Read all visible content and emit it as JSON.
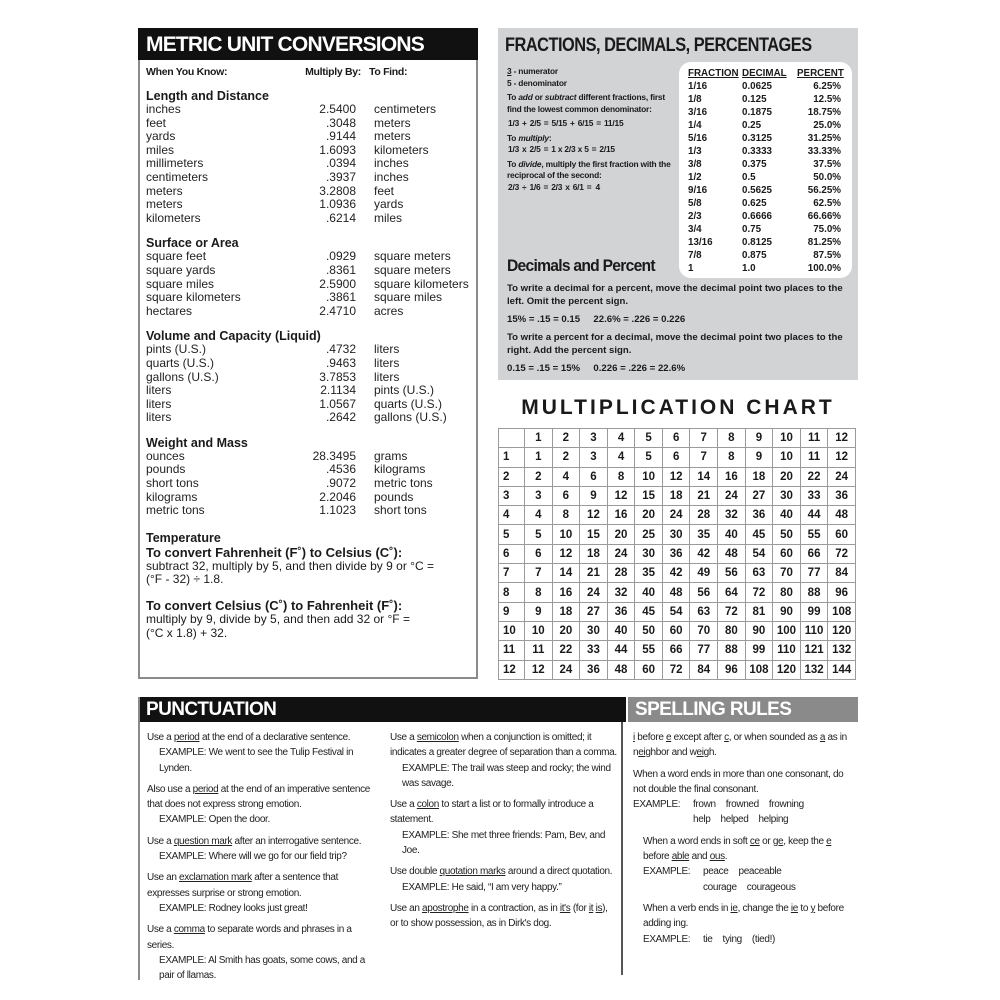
{
  "metric": {
    "title": "METRIC UNIT CONVERSIONS",
    "columns": [
      "When You Know:",
      "Multiply By:",
      "To Find:"
    ],
    "sections": [
      {
        "name": "Length and Distance",
        "rows": [
          [
            "inches",
            "2.5400",
            "centimeters"
          ],
          [
            "feet",
            ".3048",
            "meters"
          ],
          [
            "yards",
            ".9144",
            "meters"
          ],
          [
            "miles",
            "1.6093",
            "kilometers"
          ],
          [
            "millimeters",
            ".0394",
            "inches"
          ],
          [
            "centimeters",
            ".3937",
            "inches"
          ],
          [
            "meters",
            "3.2808",
            "feet"
          ],
          [
            "meters",
            "1.0936",
            "yards"
          ],
          [
            "kilometers",
            ".6214",
            "miles"
          ]
        ]
      },
      {
        "name": "Surface or Area",
        "rows": [
          [
            "square feet",
            ".0929",
            "square meters"
          ],
          [
            "square yards",
            ".8361",
            "square meters"
          ],
          [
            "square miles",
            "2.5900",
            "square kilometers"
          ],
          [
            "square kilometers",
            ".3861",
            "square miles"
          ],
          [
            "hectares",
            "2.4710",
            "acres"
          ]
        ]
      },
      {
        "name": "Volume and Capacity (Liquid)",
        "rows": [
          [
            "pints (U.S.)",
            ".4732",
            "liters"
          ],
          [
            "quarts (U.S.)",
            ".9463",
            "liters"
          ],
          [
            "gallons (U.S.)",
            "3.7853",
            "liters"
          ],
          [
            "liters",
            "2.1134",
            "pints (U.S.)"
          ],
          [
            "liters",
            "1.0567",
            "quarts (U.S.)"
          ],
          [
            "liters",
            ".2642",
            "gallons (U.S.)"
          ]
        ]
      },
      {
        "name": "Weight and Mass",
        "rows": [
          [
            "ounces",
            "28.3495",
            "grams"
          ],
          [
            "pounds",
            ".4536",
            "kilograms"
          ],
          [
            "short tons",
            ".9072",
            "metric tons"
          ],
          [
            "kilograms",
            "2.2046",
            "pounds"
          ],
          [
            "metric tons",
            "1.1023",
            "short tons"
          ]
        ]
      }
    ],
    "temperature": {
      "heading": "Temperature",
      "f_to_c_title": "To convert Fahrenheit (F˚) to Celsius (C˚):",
      "f_to_c_text": "subtract 32, multiply by 5, and then divide by 9 or °C = (°F - 32) ÷ 1.8.",
      "c_to_f_title": "To convert Celsius (C˚) to Fahrenheit (F˚):",
      "c_to_f_text": "multiply by 9, divide by 5, and then add 32 or °F = (°C x 1.8) + 32."
    }
  },
  "fractions": {
    "title": "FRACTIONS, DECIMALS, PERCENTAGES",
    "numerator": {
      "digit": "3",
      "label": " - numerator"
    },
    "denominator": {
      "digit": "5",
      "label": " - denominator"
    },
    "add_text": [
      "To ",
      "add",
      " or ",
      "subtract",
      " different fractions, first find the lowest common denominator:"
    ],
    "add_formula": [
      "1/3",
      "+",
      "2/5",
      "=",
      "5/15",
      "+",
      "6/15",
      "=",
      "11/15"
    ],
    "multiply_text": [
      "To ",
      "multiply",
      ":"
    ],
    "multiply_formula": [
      "1/3",
      "x",
      "2/5",
      "=",
      "1 x 2/3 x 5",
      "=",
      "2/15"
    ],
    "divide_text": [
      "To ",
      "divide",
      ", multiply the first fraction with the reciprocal of the second:"
    ],
    "divide_formula": [
      "2/3",
      "÷",
      "1/6",
      "=",
      "2/3",
      "x",
      "6/1",
      "=",
      "4"
    ],
    "table": {
      "headers": [
        "FRACTION",
        "DECIMAL",
        "PERCENT"
      ],
      "rows": [
        [
          "1/16",
          "0.0625",
          "6.25%"
        ],
        [
          "1/8",
          "0.125",
          "12.5%"
        ],
        [
          "3/16",
          "0.1875",
          "18.75%"
        ],
        [
          "1/4",
          "0.25",
          "25.0%"
        ],
        [
          "5/16",
          "0.3125",
          "31.25%"
        ],
        [
          "1/3",
          "0.3333",
          "33.33%"
        ],
        [
          "3/8",
          "0.375",
          "37.5%"
        ],
        [
          "1/2",
          "0.5",
          "50.0%"
        ],
        [
          "9/16",
          "0.5625",
          "56.25%"
        ],
        [
          "5/8",
          "0.625",
          "62.5%"
        ],
        [
          "2/3",
          "0.6666",
          "66.66%"
        ],
        [
          "3/4",
          "0.75",
          "75.0%"
        ],
        [
          "13/16",
          "0.8125",
          "81.25%"
        ],
        [
          "7/8",
          "0.875",
          "87.5%"
        ],
        [
          "1",
          "1.0",
          "100.0%"
        ]
      ]
    },
    "decimals": {
      "heading": "Decimals and Percent",
      "p1": "To write a decimal for a percent, move the decimal point two places to the left. Omit the percent sign.",
      "ex1": "15% = .15 = 0.15     22.6% = .226 = 0.226",
      "p2": "To write a percent for a decimal, move the decimal point two places to the right. Add the percent sign.",
      "ex2": "0.15 = .15 = 15%     0.226 = .226 = 22.6%"
    }
  },
  "multiplication": {
    "title": "MULTIPLICATION CHART",
    "headers": [
      "1",
      "2",
      "3",
      "4",
      "5",
      "6",
      "7",
      "8",
      "9",
      "10",
      "11",
      "12"
    ],
    "rows": [
      [
        1,
        2,
        3,
        4,
        5,
        6,
        7,
        8,
        9,
        10,
        11,
        12
      ],
      [
        2,
        4,
        6,
        8,
        10,
        12,
        14,
        16,
        18,
        20,
        22,
        24
      ],
      [
        3,
        6,
        9,
        12,
        15,
        18,
        21,
        24,
        27,
        30,
        33,
        36
      ],
      [
        4,
        8,
        12,
        16,
        20,
        24,
        28,
        32,
        36,
        40,
        44,
        48
      ],
      [
        5,
        10,
        15,
        20,
        25,
        30,
        35,
        40,
        45,
        50,
        55,
        60
      ],
      [
        6,
        12,
        18,
        24,
        30,
        36,
        42,
        48,
        54,
        60,
        66,
        72
      ],
      [
        7,
        14,
        21,
        28,
        35,
        42,
        49,
        56,
        63,
        70,
        77,
        84
      ],
      [
        8,
        16,
        24,
        32,
        40,
        48,
        56,
        64,
        72,
        80,
        88,
        96
      ],
      [
        9,
        18,
        27,
        36,
        45,
        54,
        63,
        72,
        81,
        90,
        99,
        108
      ],
      [
        10,
        20,
        30,
        40,
        50,
        60,
        70,
        80,
        90,
        100,
        110,
        120
      ],
      [
        11,
        22,
        33,
        44,
        55,
        66,
        77,
        88,
        99,
        110,
        121,
        132
      ],
      [
        12,
        24,
        36,
        48,
        60,
        72,
        84,
        96,
        108,
        120,
        132,
        144
      ]
    ]
  },
  "punctuation": {
    "title": "PUNCTUATION",
    "col1": [
      {
        "parts": [
          [
            "Use a "
          ],
          [
            "period",
            1
          ],
          [
            " at the end of a declarative sentence."
          ]
        ],
        "example": "EXAMPLE: We went to see the Tulip Festival in Lynden."
      },
      {
        "parts": [
          [
            "Also use a "
          ],
          [
            "period",
            1
          ],
          [
            " at the end of an imperative sentence that does not express strong emotion."
          ]
        ],
        "example": "EXAMPLE: Open the door."
      },
      {
        "parts": [
          [
            "Use a "
          ],
          [
            "question mark",
            1
          ],
          [
            " after an interrogative sentence."
          ]
        ],
        "example": "EXAMPLE: Where will we go for our field trip?"
      },
      {
        "parts": [
          [
            "Use an "
          ],
          [
            "exclamation mark",
            1
          ],
          [
            " after a sentence that expresses surprise or strong emotion."
          ]
        ],
        "example": "EXAMPLE: Rodney looks just great!"
      },
      {
        "parts": [
          [
            "Use a "
          ],
          [
            "comma",
            1
          ],
          [
            " to separate words and phrases in a series."
          ]
        ],
        "example": "EXAMPLE: Al Smith has goats, some cows, and a pair of llamas."
      }
    ],
    "col2": [
      {
        "parts": [
          [
            "Use a "
          ],
          [
            "semicolon",
            1
          ],
          [
            " when a conjunction is omitted; it indicates a greater degree of separation than a comma."
          ]
        ],
        "example": "EXAMPLE: The trail was steep and rocky; the wind was savage."
      },
      {
        "parts": [
          [
            "Use a "
          ],
          [
            "colon",
            1
          ],
          [
            " to start a list or to formally introduce a statement."
          ]
        ],
        "example": "EXAMPLE: She met three friends: Pam, Bev, and Joe."
      },
      {
        "parts": [
          [
            "Use double "
          ],
          [
            "quotation marks",
            1
          ],
          [
            " around a direct quotation."
          ]
        ],
        "example": "EXAMPLE: He said, “I am very happy.”"
      },
      {
        "parts": [
          [
            "Use an "
          ],
          [
            "apostrophe",
            1
          ],
          [
            " in a contraction, as in "
          ],
          [
            "it's",
            1
          ],
          [
            " (for "
          ],
          [
            "it",
            1
          ],
          [
            " "
          ],
          [
            "is",
            1
          ],
          [
            "), or to show possession, as in Dirk's dog."
          ]
        ],
        "example": ""
      }
    ]
  },
  "spelling": {
    "title": "SPELLING RULES",
    "rules": [
      {
        "parts": [
          [
            "i",
            1
          ],
          [
            " before "
          ],
          [
            "e",
            1
          ],
          [
            " except after "
          ],
          [
            "c",
            1
          ],
          [
            ", or when sounded as "
          ],
          [
            "a",
            1
          ],
          [
            " as in n"
          ],
          [
            "ei",
            1
          ],
          [
            "ghbor and w"
          ],
          [
            "ei",
            1
          ],
          [
            "gh."
          ]
        ],
        "examples": []
      },
      {
        "parts": [
          [
            "When a word ends in more than one consonant, do not double the final consonant."
          ]
        ],
        "label": "EXAMPLE:",
        "examples": [
          [
            "frown",
            "frowned",
            "frowning"
          ],
          [
            "help",
            "helped",
            "helping"
          ]
        ]
      },
      {
        "parts": [
          [
            "When a word ends in soft "
          ],
          [
            "ce",
            1
          ],
          [
            " or "
          ],
          [
            "ge",
            1
          ],
          [
            ", keep the "
          ],
          [
            "e",
            1
          ],
          [
            " before "
          ],
          [
            "able",
            1
          ],
          [
            " and "
          ],
          [
            "ous",
            1
          ],
          [
            "."
          ]
        ],
        "label": "EXAMPLE:",
        "examples": [
          [
            "peace",
            "peaceable"
          ],
          [
            "courage",
            "courageous"
          ]
        ]
      },
      {
        "parts": [
          [
            "When a verb ends in "
          ],
          [
            "ie",
            1
          ],
          [
            ", change the "
          ],
          [
            "ie",
            1
          ],
          [
            " to "
          ],
          [
            "y",
            1
          ],
          [
            " before adding ing."
          ]
        ],
        "label": "EXAMPLE:",
        "examples": [
          [
            "tie",
            "tying",
            "(tied!)"
          ]
        ]
      }
    ]
  }
}
